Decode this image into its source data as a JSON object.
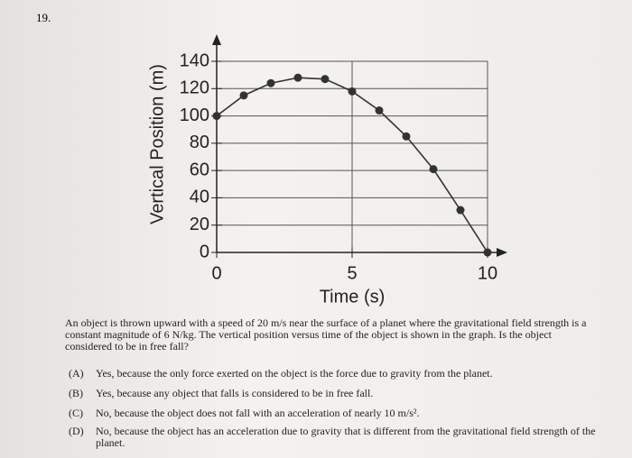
{
  "number": "19.",
  "chart_data": {
    "type": "line",
    "xlabel": "Time (s)",
    "ylabel": "Vertical Position (m)",
    "x": [
      0,
      1,
      2,
      3,
      4,
      5,
      6,
      7,
      8,
      9,
      10
    ],
    "series": [
      {
        "color": "#333333",
        "values": [
          100,
          115,
          124,
          128,
          127,
          118,
          104,
          85,
          61,
          31,
          0
        ]
      }
    ],
    "xlim": [
      0,
      10
    ],
    "ylim": [
      0,
      140
    ],
    "xticks": [
      0,
      5,
      10
    ],
    "yticks": [
      0,
      20,
      40,
      60,
      80,
      100,
      120,
      140
    ],
    "grid": true
  },
  "question": {
    "text": "An object is thrown upward with a speed of 20 m/s near the surface of a planet where the gravitational field strength is a constant magnitude of 6 N/kg. The vertical position versus time of the object is shown in the graph. Is the object considered to be in free fall?",
    "options": [
      {
        "letter": "(A)",
        "text": "Yes, because the only force exerted on the object is the force due to gravity from the planet."
      },
      {
        "letter": "(B)",
        "text": "Yes, because any object that falls is considered to be in free fall."
      },
      {
        "letter": "(C)",
        "text": "No, because the object does not fall with an acceleration of nearly 10 m/s²."
      },
      {
        "letter": "(D)",
        "text": "No, because the object has an acceleration due to gravity that is different from the gravitational field strength of the planet."
      }
    ]
  }
}
